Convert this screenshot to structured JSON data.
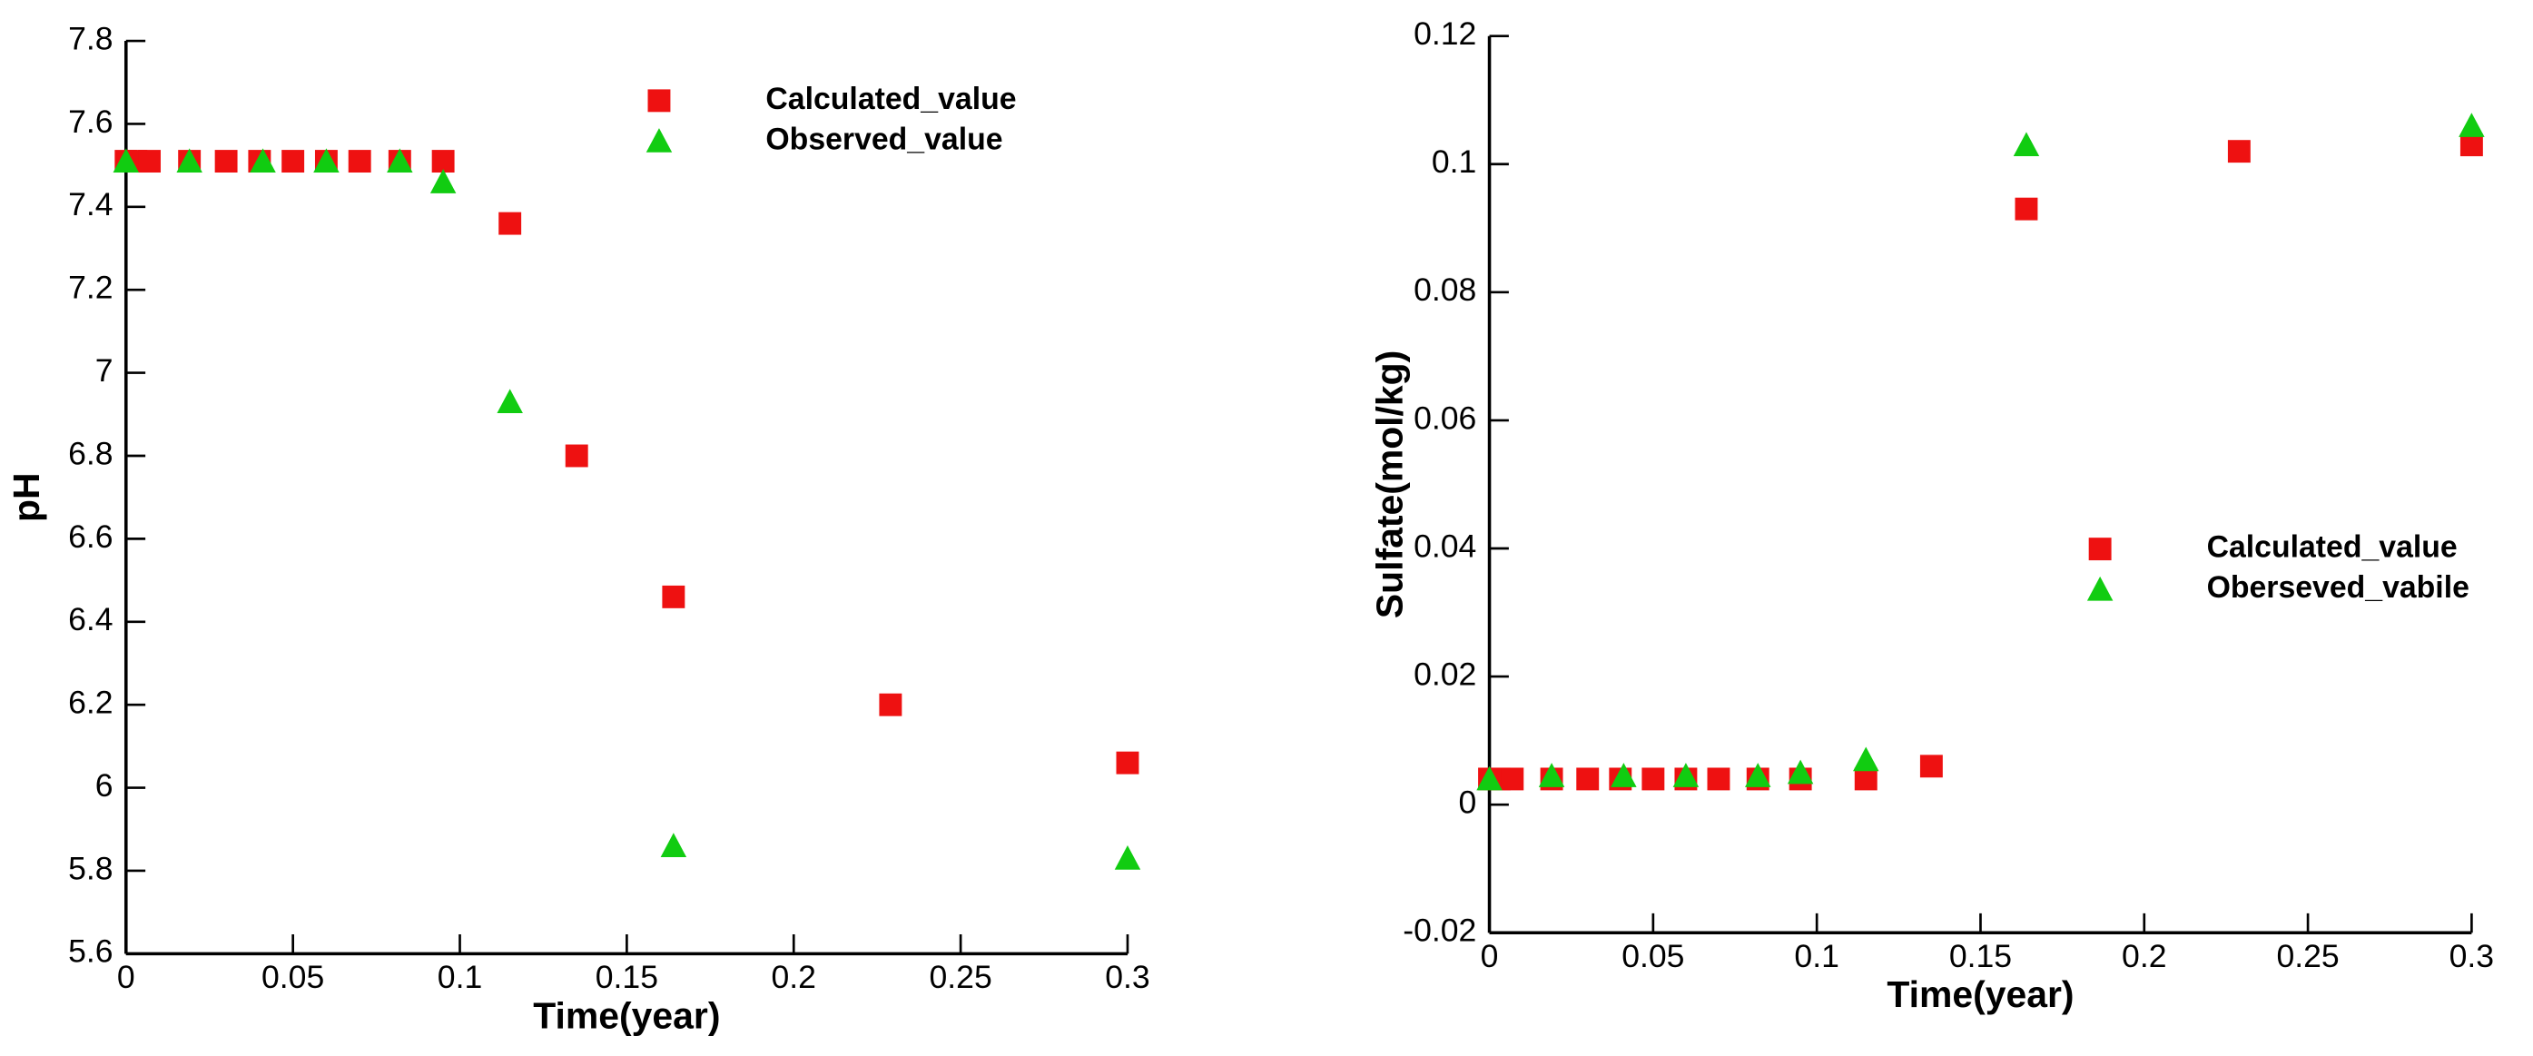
{
  "chart_data": [
    {
      "type": "scatter",
      "x_label": "Time(year)",
      "y_label": "pH",
      "xlim": [
        0,
        0.3
      ],
      "xticks": [
        0,
        0.05,
        0.1,
        0.15,
        0.2,
        0.25,
        0.3
      ],
      "ylim": [
        5.6,
        7.8
      ],
      "yticks": [
        5.6,
        5.8,
        6,
        6.2,
        6.4,
        6.6,
        6.8,
        7,
        7.2,
        7.4,
        7.6,
        7.8
      ],
      "legend": "upper right",
      "series": [
        {
          "name": "Calculated_value",
          "color": "#ee1111",
          "marker": "square",
          "x": [
            0,
            0.003,
            0.007,
            0.019,
            0.03,
            0.04,
            0.05,
            0.06,
            0.07,
            0.082,
            0.095,
            0.115,
            0.135,
            0.164,
            0.229,
            0.3
          ],
          "values": [
            7.51,
            7.51,
            7.51,
            7.51,
            7.51,
            7.51,
            7.51,
            7.51,
            7.51,
            7.51,
            7.51,
            7.36,
            6.8,
            6.46,
            6.2,
            6.06
          ]
        },
        {
          "name": "Observed_value",
          "color": "#11cc11",
          "marker": "triangle",
          "x": [
            0,
            0.019,
            0.041,
            0.06,
            0.082,
            0.095,
            0.115,
            0.164,
            0.3
          ],
          "values": [
            7.51,
            7.51,
            7.51,
            7.51,
            7.51,
            7.46,
            6.93,
            5.86,
            5.83
          ]
        }
      ]
    },
    {
      "type": "scatter",
      "x_label": "Time(year)",
      "y_label": "Sulfate(mol/kg)",
      "xlim": [
        0,
        0.3
      ],
      "xticks": [
        0,
        0.05,
        0.1,
        0.15,
        0.2,
        0.25,
        0.3
      ],
      "ylim": [
        -0.02,
        0.12
      ],
      "yticks": [
        -0.02,
        0,
        0.02,
        0.04,
        0.06,
        0.08,
        0.1,
        0.12
      ],
      "legend": "center right",
      "series": [
        {
          "name": "Calculated_value",
          "color": "#ee1111",
          "marker": "square",
          "x": [
            0,
            0.003,
            0.007,
            0.019,
            0.03,
            0.04,
            0.05,
            0.06,
            0.07,
            0.082,
            0.095,
            0.115,
            0.135,
            0.164,
            0.229,
            0.3
          ],
          "values": [
            0.004,
            0.004,
            0.004,
            0.004,
            0.004,
            0.004,
            0.004,
            0.004,
            0.004,
            0.004,
            0.004,
            0.004,
            0.006,
            0.093,
            0.102,
            0.103
          ]
        },
        {
          "name": "Oberseved_vabile",
          "color": "#11cc11",
          "marker": "triangle",
          "x": [
            0,
            0.019,
            0.041,
            0.06,
            0.082,
            0.095,
            0.115,
            0.164,
            0.3
          ],
          "values": [
            0.004,
            0.0045,
            0.0045,
            0.0045,
            0.0045,
            0.005,
            0.007,
            0.103,
            0.106
          ]
        }
      ]
    }
  ]
}
